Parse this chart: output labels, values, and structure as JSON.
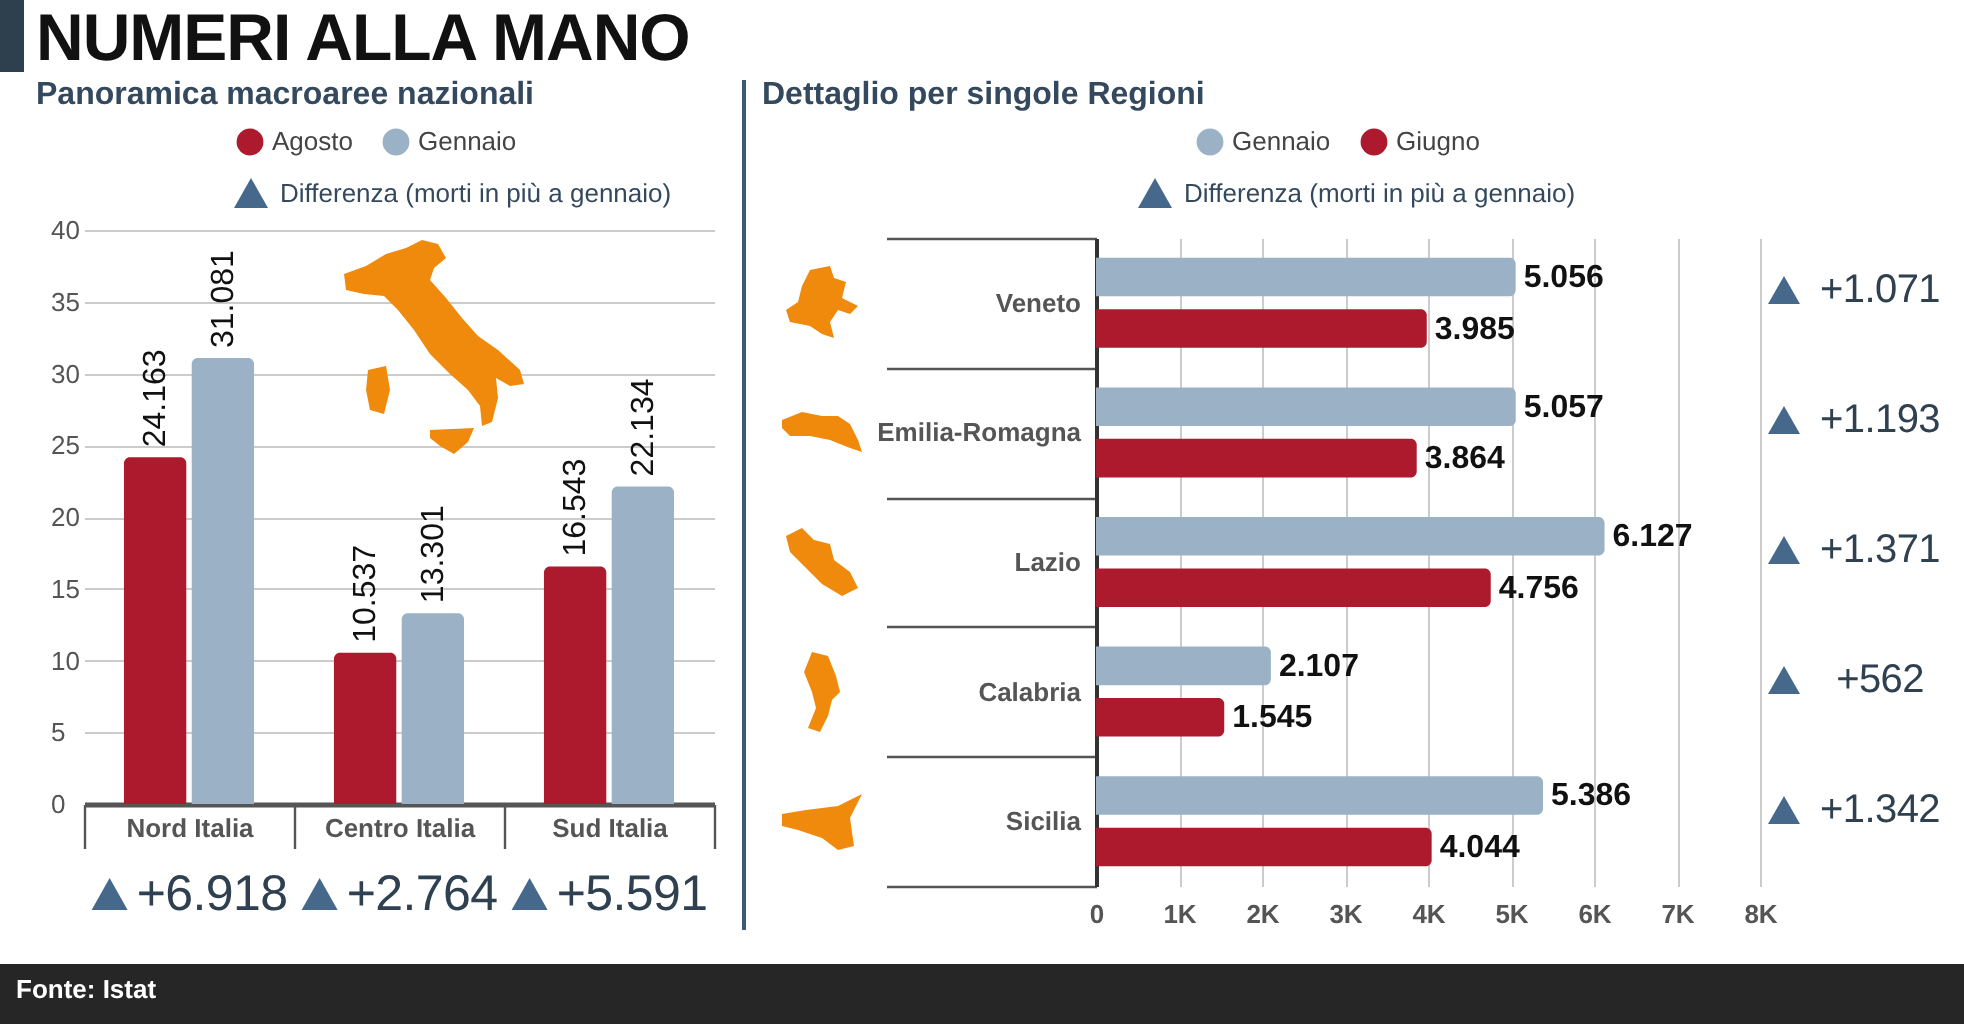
{
  "chart_data": [
    {
      "type": "bar",
      "title": "NUMERI ALLA MANO",
      "subtitle": "Panoramica macroaree nazionali",
      "categories": [
        "Nord Italia",
        "Centro Italia",
        "Sud Italia"
      ],
      "series": [
        {
          "name": "Agosto",
          "color": "#ad1a2e",
          "values": [
            24.163,
            10.537,
            16.543
          ]
        },
        {
          "name": "Gennaio",
          "color": "#9bb1c5",
          "values": [
            31.081,
            13.301,
            22.134
          ]
        }
      ],
      "ylim": [
        0,
        40
      ],
      "yticks": [
        0,
        5,
        10,
        15,
        20,
        25,
        30,
        35,
        40
      ],
      "grid": "y",
      "legend": "top",
      "data_labels": true,
      "annotations": [
        "Differenza (morti in più a gennaio)",
        "+6.918",
        "+2.764",
        "+5.591",
        "Fonte: Istat"
      ]
    },
    {
      "type": "bar",
      "orientation": "horizontal",
      "title": "Dettaglio per singole Regioni",
      "categories": [
        "Veneto",
        "Emilia-Romagna",
        "Lazio",
        "Calabria",
        "Sicilia"
      ],
      "series": [
        {
          "name": "Gennaio",
          "color": "#9bb1c5",
          "values": [
            5056,
            5057,
            6127,
            2107,
            5386
          ],
          "value_labels": [
            "5.056",
            "5.057",
            "6.127",
            "2.107",
            "5.386"
          ]
        },
        {
          "name": "Giugno",
          "color": "#ad1a2e",
          "values": [
            3985,
            3864,
            4756,
            1545,
            4044
          ],
          "value_labels": [
            "3.985",
            "3.864",
            "4.756",
            "1.545",
            "4.044"
          ]
        }
      ],
      "xlim": [
        0,
        8000
      ],
      "xticks": [
        0,
        {
          "value": 1000,
          "label": "1K"
        },
        {
          "value": 2000,
          "label": "2K"
        },
        {
          "value": 3000,
          "label": "3K"
        },
        {
          "value": 4000,
          "label": "4K"
        },
        {
          "value": 5000,
          "label": "5K"
        },
        {
          "value": 6000,
          "label": "6K"
        },
        {
          "value": 7000,
          "label": "7K"
        },
        {
          "value": 8000,
          "label": "8K"
        }
      ],
      "grid": "x",
      "legend": "top",
      "annotations": [
        "Differenza (morti in più a gennaio)",
        "+1.071",
        "+1.193",
        "+1.371",
        "+562",
        "+1.342"
      ]
    }
  ]
}
